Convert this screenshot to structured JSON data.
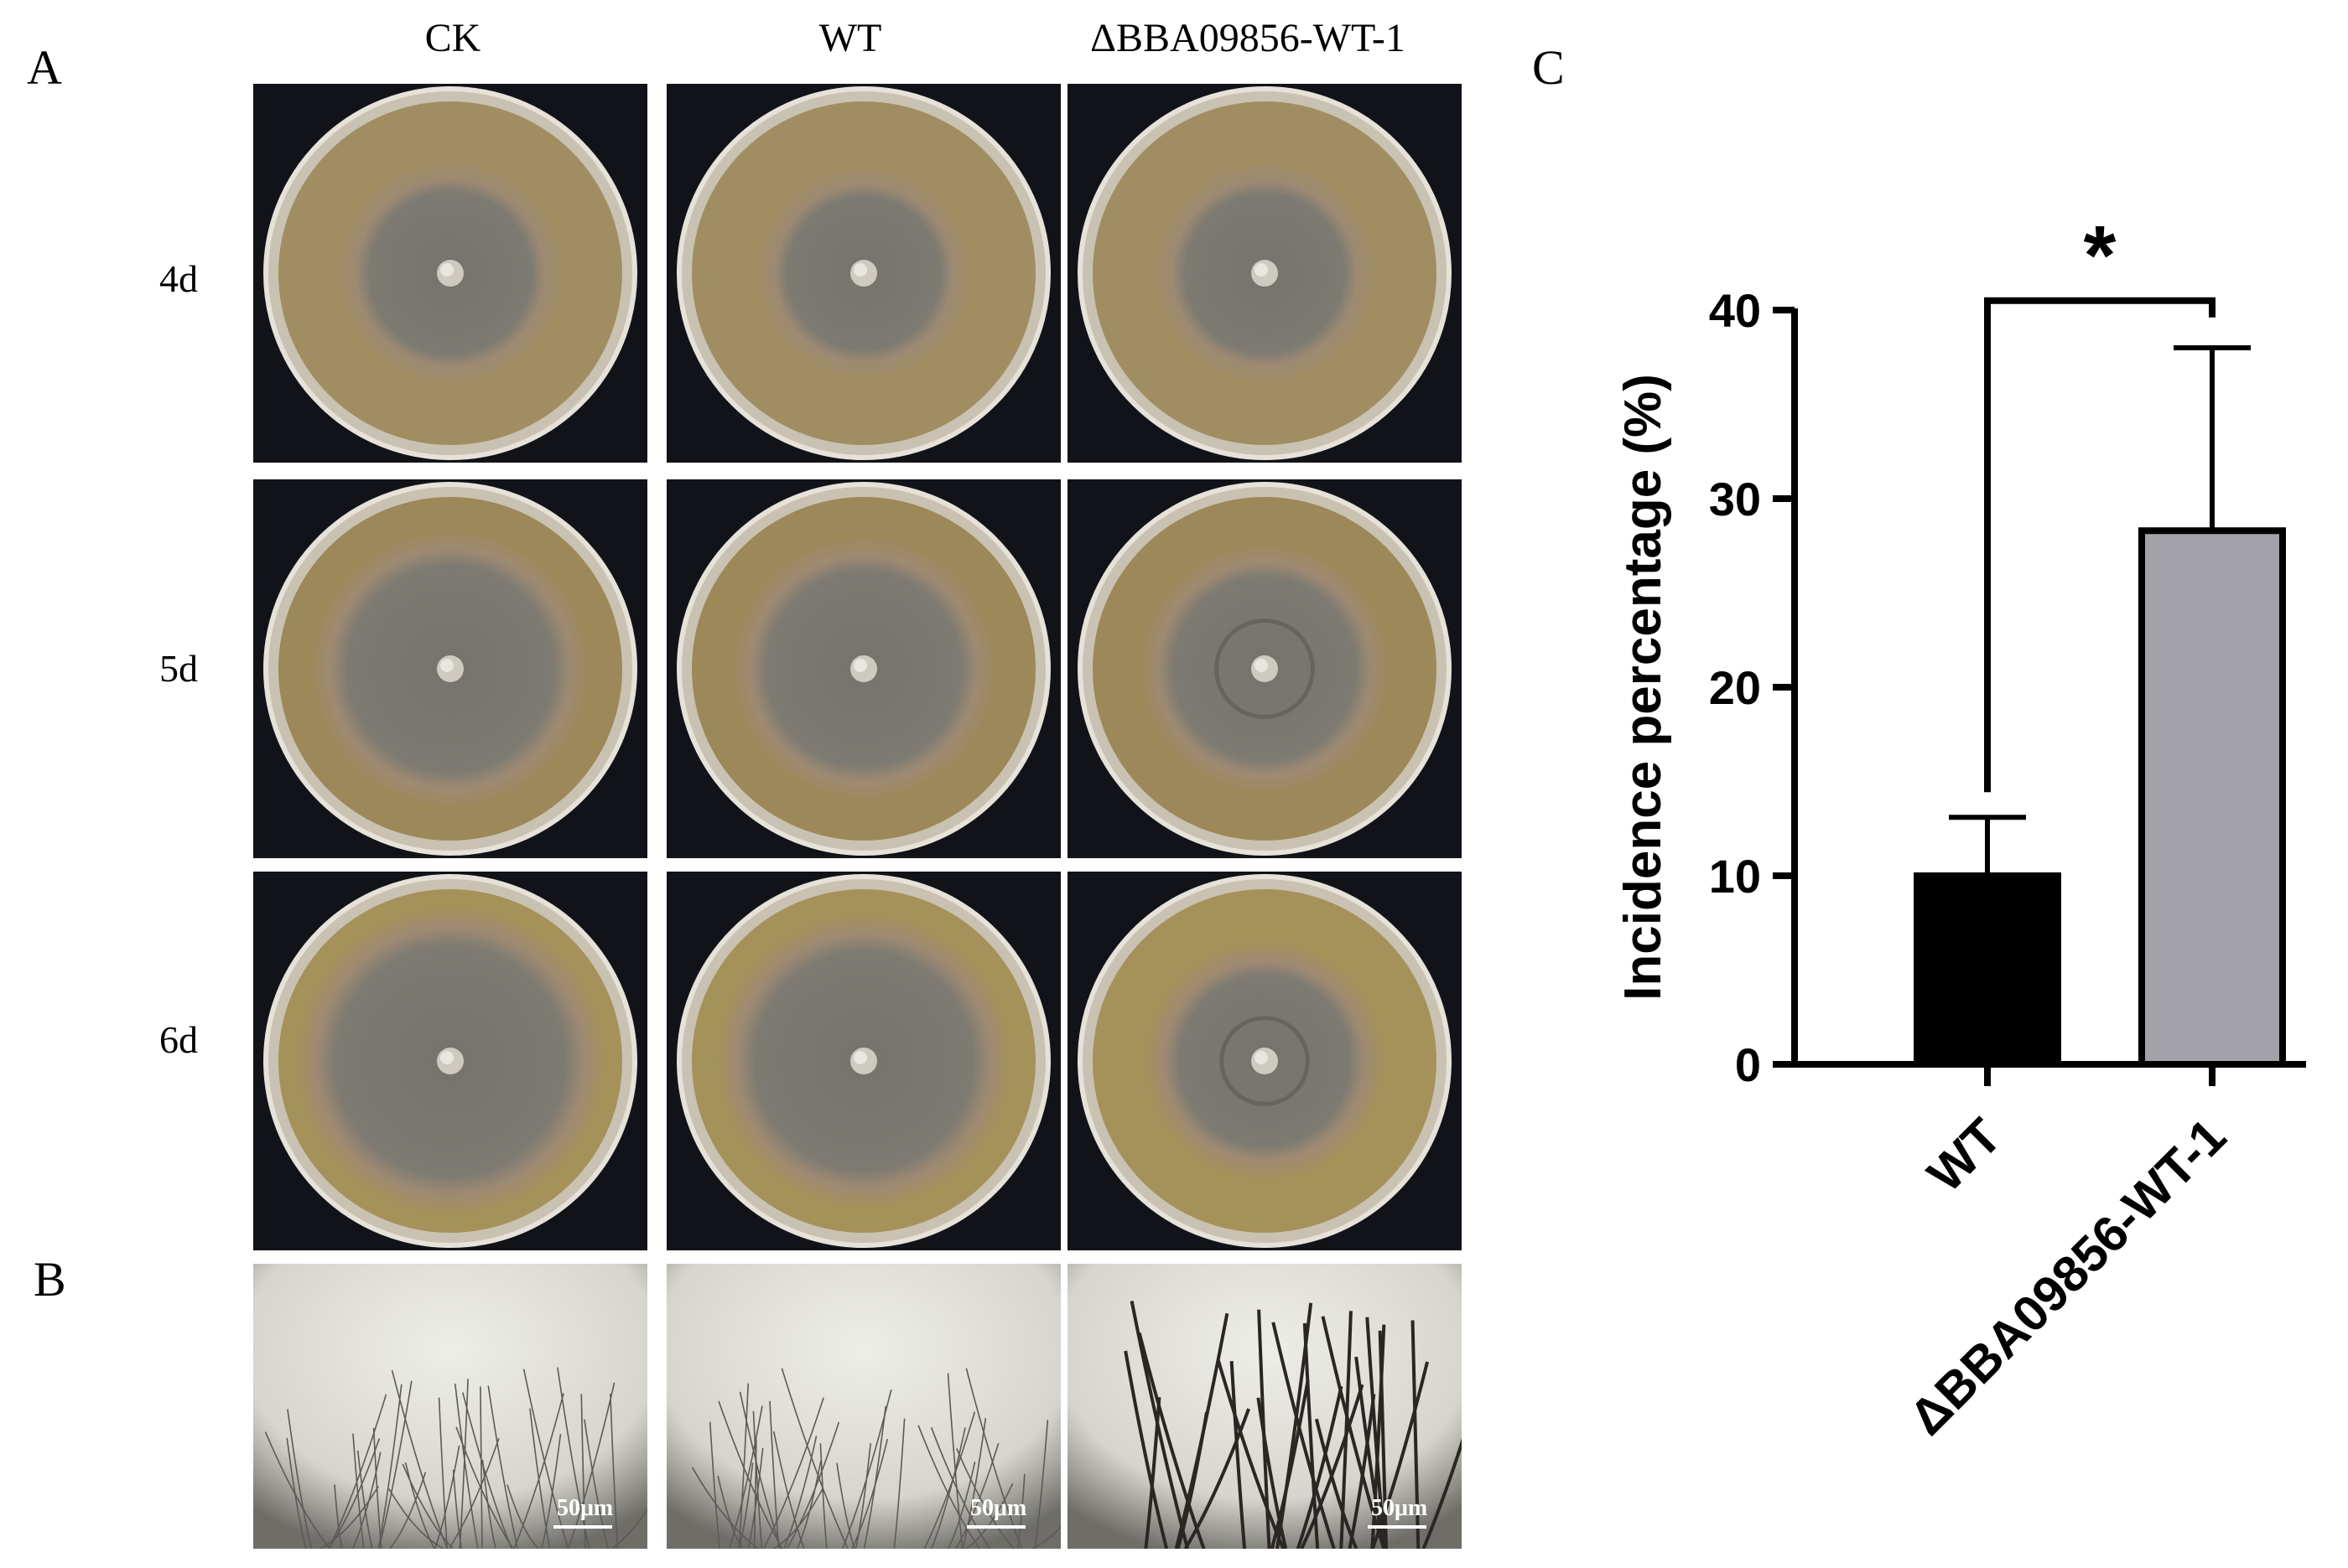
{
  "panels": {
    "a_label": "A",
    "b_label": "B",
    "c_label": "C"
  },
  "columns": [
    "CK",
    "WT",
    "ΔBBA09856-WT-1"
  ],
  "rows": [
    "4d",
    "5d",
    "6d"
  ],
  "scale_bar_text": "50μm",
  "colors": {
    "wt_bar": "#000000",
    "mutant_bar": "#a3a2a8",
    "plate_background": "#111318",
    "agar": "#9c8a62",
    "colony": "#7c7870"
  },
  "chart_data": {
    "type": "bar",
    "categories": [
      "WT",
      "ΔBBA09856-WT-1"
    ],
    "values": [
      10,
      28.3
    ],
    "error_upper": [
      13.1,
      38
    ],
    "ylabel": "Incidence percentage (%)",
    "ylim": [
      0,
      40
    ],
    "yticks": [
      0,
      10,
      20,
      30,
      40
    ],
    "significance": "*",
    "grid": false
  }
}
